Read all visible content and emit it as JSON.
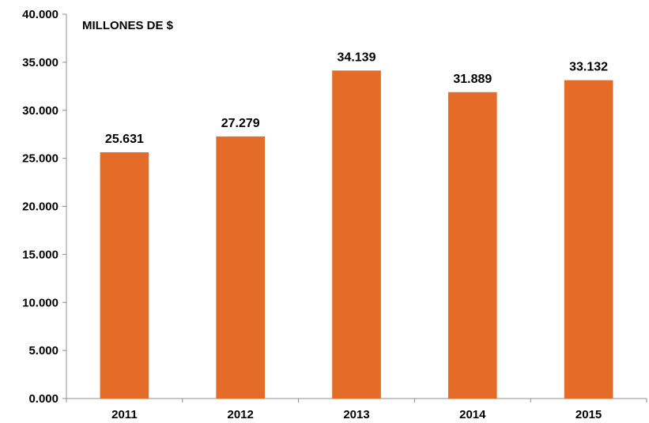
{
  "chart_data": {
    "type": "bar",
    "unit_label": "MILLONES DE $",
    "categories": [
      "2011",
      "2012",
      "2013",
      "2014",
      "2015"
    ],
    "values": [
      25631,
      27279,
      34139,
      31889,
      33132
    ],
    "value_labels": [
      "25.631",
      "27.279",
      "34.139",
      "31.889",
      "33.132"
    ],
    "ylim": [
      0,
      40000
    ],
    "yticks": [
      0,
      5000,
      10000,
      15000,
      20000,
      25000,
      30000,
      35000,
      40000
    ],
    "ytick_labels": [
      "0.000",
      "5.000",
      "10.000",
      "15.000",
      "20.000",
      "25.000",
      "30.000",
      "35.000",
      "40.000"
    ],
    "bar_color": "#E46C28",
    "grid": false,
    "legend": "none"
  }
}
